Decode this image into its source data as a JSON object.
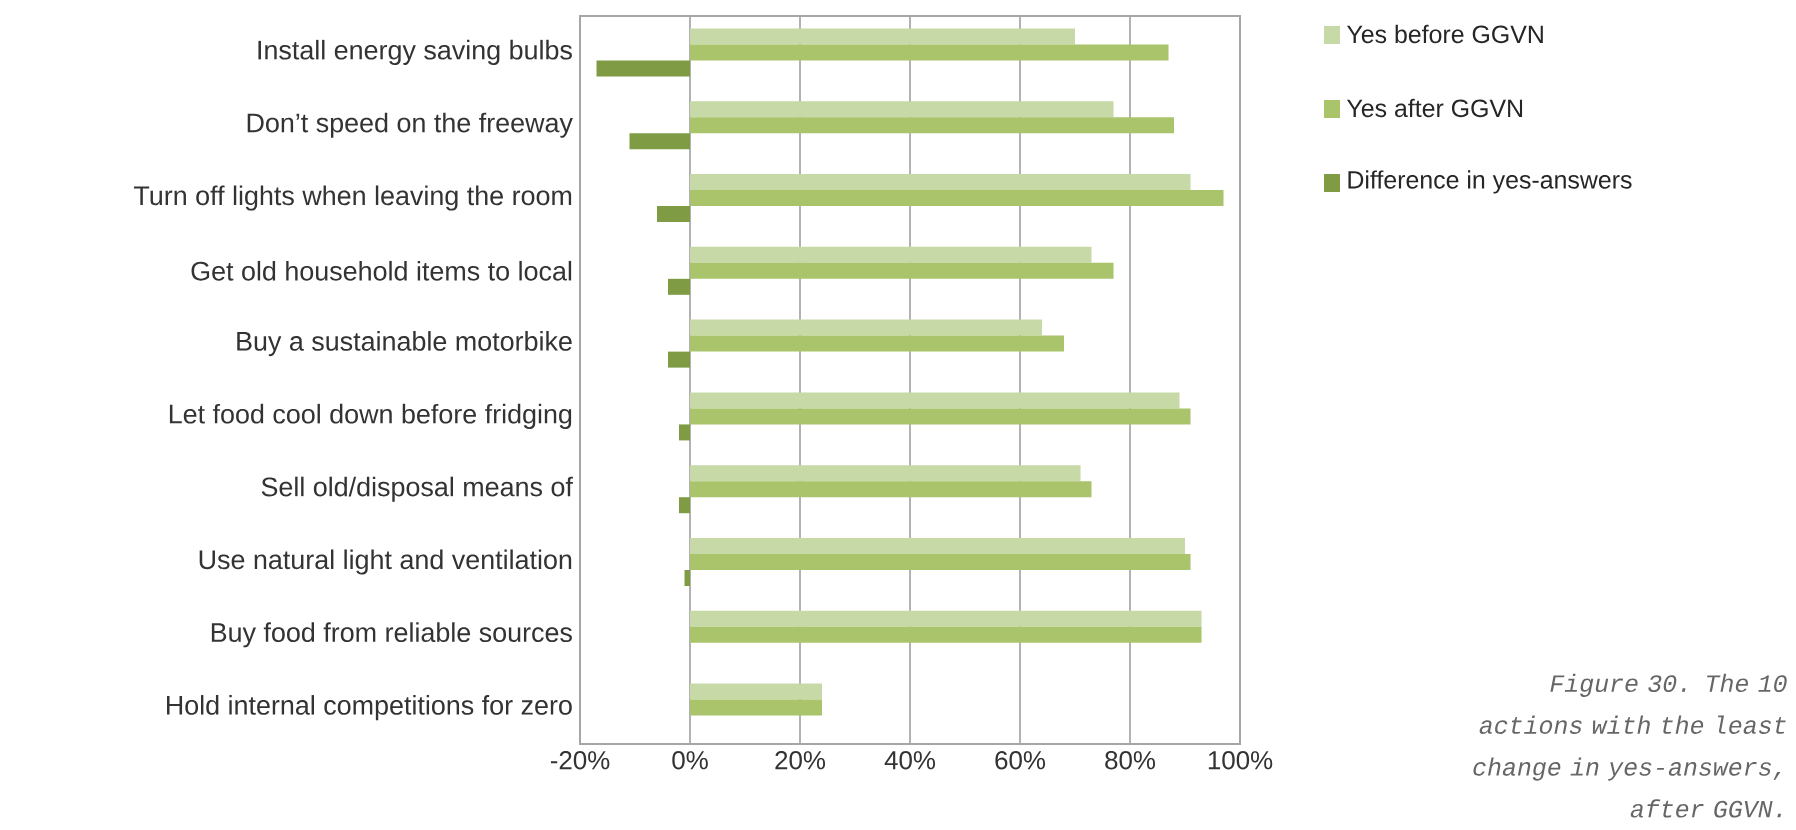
{
  "chart_data": {
    "type": "bar",
    "orientation": "horizontal",
    "categories": [
      "Install energy saving bulbs",
      "Don’t speed on the freeway",
      "Turn off lights when leaving the room",
      "Get old household items to local",
      "Buy a sustainable motorbike",
      "Let food cool down before fridging",
      "Sell old/disposal means of",
      "Use natural light and ventilation",
      "Buy food from reliable sources",
      "Hold internal competitions for zero"
    ],
    "series": [
      {
        "name": "Yes before GGVN",
        "color": "#c6d9a6",
        "values": [
          70,
          77,
          91,
          73,
          64,
          89,
          71,
          90,
          93,
          24
        ]
      },
      {
        "name": "Yes after GGVN",
        "color": "#a9c46a",
        "values": [
          87,
          88,
          97,
          77,
          68,
          91,
          73,
          91,
          93,
          24
        ]
      },
      {
        "name": "Difference in yes-answers",
        "color": "#7f9c45",
        "values": [
          -17,
          -11,
          -6,
          -4,
          -4,
          -2,
          -2,
          -1,
          0,
          0
        ]
      }
    ],
    "xlim": [
      -20,
      100
    ],
    "xticks": [
      {
        "value": -20,
        "label": "-20%"
      },
      {
        "value": 0,
        "label": "0%"
      },
      {
        "value": 20,
        "label": "20%"
      },
      {
        "value": 40,
        "label": "40%"
      },
      {
        "value": 60,
        "label": "60%"
      },
      {
        "value": 80,
        "label": "80%"
      },
      {
        "value": 100,
        "label": "100%"
      }
    ],
    "grid": "x",
    "legend": "top right",
    "annotations": [
      "Figure 30. The 10 actions with the least change in yes-answers, after GGVN."
    ]
  }
}
